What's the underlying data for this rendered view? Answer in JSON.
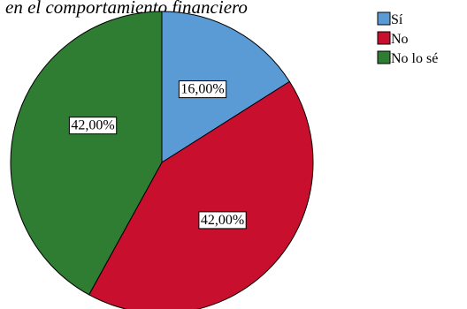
{
  "chart_data": {
    "type": "pie",
    "title": "en el comportamiento financiero",
    "categories": [
      "Sí",
      "No",
      "No lo sé"
    ],
    "values": [
      16.0,
      42.0,
      42.0
    ],
    "value_labels": [
      "16,00%",
      "42,00%",
      "42,00%"
    ],
    "colors": [
      "#5b9bd5",
      "#c8102e",
      "#2e7d32"
    ],
    "start": "12 o'clock",
    "direction": "clockwise",
    "legend": "right",
    "slice_border_color": "#000000",
    "label_box_fill": "#ffffff"
  }
}
